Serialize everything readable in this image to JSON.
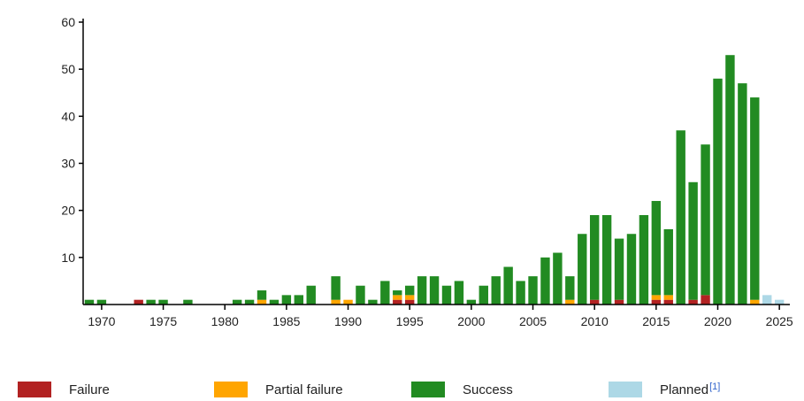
{
  "colors": {
    "failure": "#b22222",
    "partial": "#ffa500",
    "success": "#228b22",
    "planned": "#add8e6",
    "axis": "#000000"
  },
  "legend": {
    "failure": "Failure",
    "partial": "Partial failure",
    "success": "Success",
    "planned": "Planned",
    "planned_note": "[1]"
  },
  "chart_data": {
    "type": "bar",
    "stacked": true,
    "title": "",
    "xlabel": "",
    "ylabel": "",
    "ylim": [
      0,
      60
    ],
    "yticks": [
      10,
      20,
      30,
      40,
      50,
      60
    ],
    "xticks": [
      1970,
      1975,
      1980,
      1985,
      1990,
      1995,
      2000,
      2005,
      2010,
      2015,
      2020,
      2025
    ],
    "grid": false,
    "legend_position": "bottom",
    "categories": [
      1969,
      1970,
      1971,
      1972,
      1973,
      1974,
      1975,
      1976,
      1977,
      1978,
      1979,
      1980,
      1981,
      1982,
      1983,
      1984,
      1985,
      1986,
      1987,
      1988,
      1989,
      1990,
      1991,
      1992,
      1993,
      1994,
      1995,
      1996,
      1997,
      1998,
      1999,
      2000,
      2001,
      2002,
      2003,
      2004,
      2005,
      2006,
      2007,
      2008,
      2009,
      2010,
      2011,
      2012,
      2013,
      2014,
      2015,
      2016,
      2017,
      2018,
      2019,
      2020,
      2021,
      2022,
      2023,
      2024,
      2025
    ],
    "series": [
      {
        "name": "Failure",
        "key": "failure",
        "values": [
          0,
          0,
          0,
          0,
          1,
          0,
          0,
          0,
          0,
          0,
          0,
          0,
          0,
          0,
          0,
          0,
          0,
          0,
          0,
          0,
          0,
          0,
          0,
          0,
          0,
          1,
          1,
          0,
          0,
          0,
          0,
          0,
          0,
          0,
          0,
          0,
          0,
          0,
          0,
          0,
          0,
          1,
          0,
          1,
          0,
          0,
          1,
          1,
          0,
          1,
          2,
          0,
          0,
          0,
          0,
          0,
          0
        ]
      },
      {
        "name": "Partial failure",
        "key": "partial",
        "values": [
          0,
          0,
          0,
          0,
          0,
          0,
          0,
          0,
          0,
          0,
          0,
          0,
          0,
          0,
          1,
          0,
          0,
          0,
          0,
          0,
          1,
          1,
          0,
          0,
          0,
          1,
          1,
          0,
          0,
          0,
          0,
          0,
          0,
          0,
          0,
          0,
          0,
          0,
          0,
          1,
          0,
          0,
          0,
          0,
          0,
          0,
          1,
          1,
          0,
          0,
          0,
          0,
          0,
          0,
          1,
          0,
          0
        ]
      },
      {
        "name": "Success",
        "key": "success",
        "values": [
          1,
          1,
          0,
          0,
          0,
          1,
          1,
          0,
          1,
          0,
          0,
          0,
          1,
          1,
          2,
          1,
          2,
          2,
          4,
          0,
          5,
          0,
          4,
          1,
          5,
          1,
          2,
          6,
          6,
          4,
          5,
          1,
          4,
          6,
          8,
          5,
          6,
          10,
          11,
          5,
          15,
          18,
          19,
          13,
          15,
          19,
          20,
          14,
          37,
          25,
          32,
          48,
          53,
          47,
          43,
          0,
          0
        ]
      },
      {
        "name": "Planned",
        "key": "planned",
        "values": [
          0,
          0,
          0,
          0,
          0,
          0,
          0,
          0,
          0,
          0,
          0,
          0,
          0,
          0,
          0,
          0,
          0,
          0,
          0,
          0,
          0,
          0,
          0,
          0,
          0,
          0,
          0,
          0,
          0,
          0,
          0,
          0,
          0,
          0,
          0,
          0,
          0,
          0,
          0,
          0,
          0,
          0,
          0,
          0,
          0,
          0,
          0,
          0,
          0,
          0,
          0,
          0,
          0,
          0,
          0,
          2,
          1
        ]
      }
    ]
  }
}
